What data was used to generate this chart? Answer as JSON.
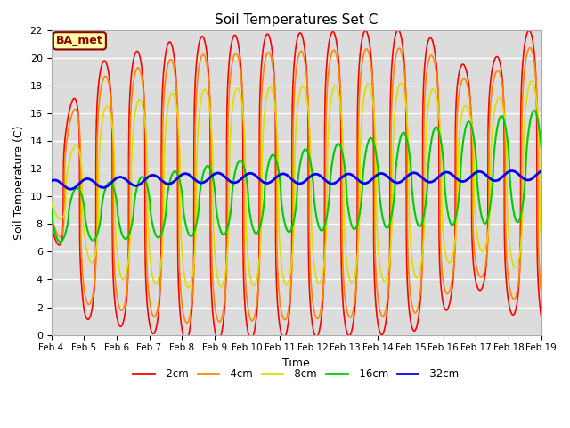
{
  "title": "Soil Temperatures Set C",
  "xlabel": "Time",
  "ylabel": "Soil Temperature (C)",
  "ylim": [
    0,
    22
  ],
  "plot_bg_color": "#dcdcdc",
  "grid_color": "white",
  "annotation_text": "BA_met",
  "annotation_color": "#8B0000",
  "annotation_bg": "#ffffaa",
  "legend_entries": [
    "-2cm",
    "-4cm",
    "-8cm",
    "-16cm",
    "-32cm"
  ],
  "line_colors": [
    "#ff0000",
    "#ff8800",
    "#dddd00",
    "#00cc00",
    "#0000ee"
  ],
  "line_widths": [
    1.2,
    1.2,
    1.2,
    1.5,
    2.0
  ],
  "x_tick_labels": [
    "Feb 4",
    "Feb 5",
    "Feb 6",
    "Feb 7",
    "Feb 8",
    "Feb 9",
    "Feb 10",
    "Feb 11",
    "Feb 12",
    "Feb 13",
    "Feb 14",
    "Feb 15",
    "Feb 16",
    "Feb 17",
    "Feb 18",
    "Feb 19"
  ],
  "x_tick_positions": [
    0,
    1,
    2,
    3,
    4,
    5,
    6,
    7,
    8,
    9,
    10,
    11,
    12,
    13,
    14,
    15
  ]
}
